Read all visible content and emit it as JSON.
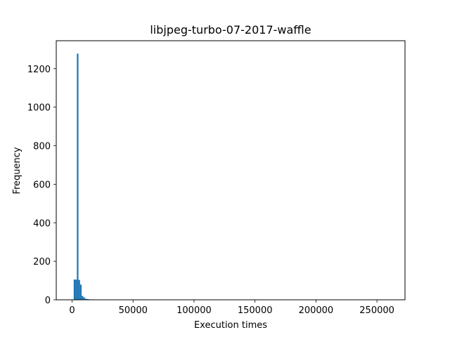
{
  "chart_data": {
    "type": "bar",
    "title": "libjpeg-turbo-07-2017-waffle",
    "xlabel": "Execution times",
    "ylabel": "Frequency",
    "xlim": [
      -13000,
      273000
    ],
    "ylim": [
      0,
      1345
    ],
    "x_ticks": [
      0,
      50000,
      100000,
      150000,
      200000,
      250000
    ],
    "y_ticks": [
      0,
      200,
      400,
      600,
      800,
      1000,
      1200
    ],
    "bin_width": 1300,
    "bins": [
      {
        "x": 1300,
        "value": 105
      },
      {
        "x": 2600,
        "value": 105
      },
      {
        "x": 3900,
        "value": 1278
      },
      {
        "x": 5200,
        "value": 103
      },
      {
        "x": 6500,
        "value": 79
      },
      {
        "x": 7800,
        "value": 20
      },
      {
        "x": 9100,
        "value": 13
      },
      {
        "x": 10400,
        "value": 6
      },
      {
        "x": 11700,
        "value": 4
      },
      {
        "x": 13000,
        "value": 3
      },
      {
        "x": 14300,
        "value": 2
      },
      {
        "x": 15600,
        "value": 2
      },
      {
        "x": 16900,
        "value": 2
      },
      {
        "x": 18200,
        "value": 1
      }
    ],
    "bar_color": "#1f77b4",
    "grid": false,
    "legend": "none"
  }
}
